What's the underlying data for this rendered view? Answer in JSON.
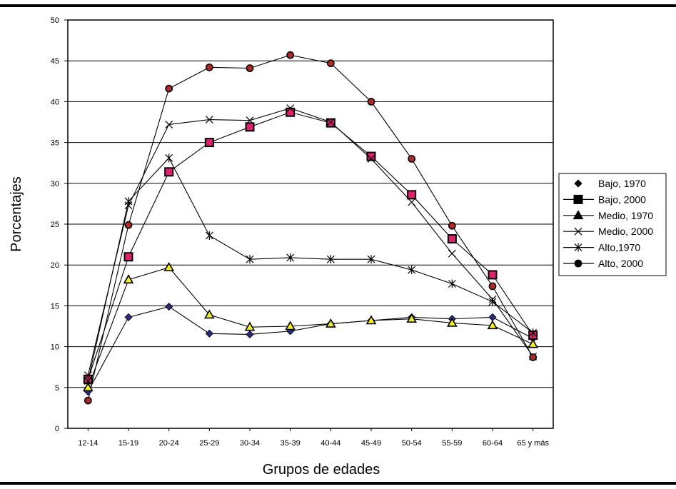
{
  "chart_data": {
    "type": "line",
    "title": "",
    "xlabel": "Grupos de edades",
    "ylabel": "Porcentajes",
    "ylim": [
      0,
      50
    ],
    "yticks": [
      0,
      5,
      10,
      15,
      20,
      25,
      30,
      35,
      40,
      45,
      50
    ],
    "grid": "horizontal",
    "legend_position": "right",
    "categories": [
      "12-14",
      "15-19",
      "20-24",
      "25-29",
      "30-34",
      "35-39",
      "40-44",
      "45-49",
      "50-54",
      "55-59",
      "60-64",
      "65 y más"
    ],
    "series": [
      {
        "name": "Bajo, 1970",
        "marker": "diamond",
        "values": [
          4.5,
          13.6,
          14.9,
          11.6,
          11.5,
          11.9,
          12.8,
          13.2,
          13.6,
          13.4,
          13.6,
          11.0
        ]
      },
      {
        "name": "Bajo, 2000",
        "marker": "square",
        "values": [
          6.0,
          21.0,
          31.4,
          35.0,
          36.9,
          38.7,
          37.4,
          33.3,
          28.6,
          23.2,
          18.8,
          11.4
        ]
      },
      {
        "name": "Medio, 1970",
        "marker": "triangle",
        "values": [
          5.0,
          18.2,
          19.7,
          13.9,
          12.4,
          12.5,
          12.8,
          13.2,
          13.4,
          12.9,
          12.6,
          10.3
        ]
      },
      {
        "name": "Medio, 2000",
        "marker": "x",
        "values": [
          6.5,
          27.3,
          37.2,
          37.8,
          37.7,
          39.2,
          37.5,
          33.0,
          27.7,
          21.4,
          15.8,
          8.8
        ]
      },
      {
        "name": "Alto,1970",
        "marker": "asterisk",
        "values": [
          5.8,
          27.8,
          33.1,
          23.6,
          20.7,
          20.9,
          20.7,
          20.7,
          19.4,
          17.7,
          15.5,
          11.7
        ]
      },
      {
        "name": "Alto, 2000",
        "marker": "circle",
        "values": [
          3.4,
          24.9,
          41.6,
          44.2,
          44.1,
          45.7,
          44.7,
          40.0,
          33.0,
          24.8,
          17.4,
          8.7
        ]
      }
    ]
  }
}
